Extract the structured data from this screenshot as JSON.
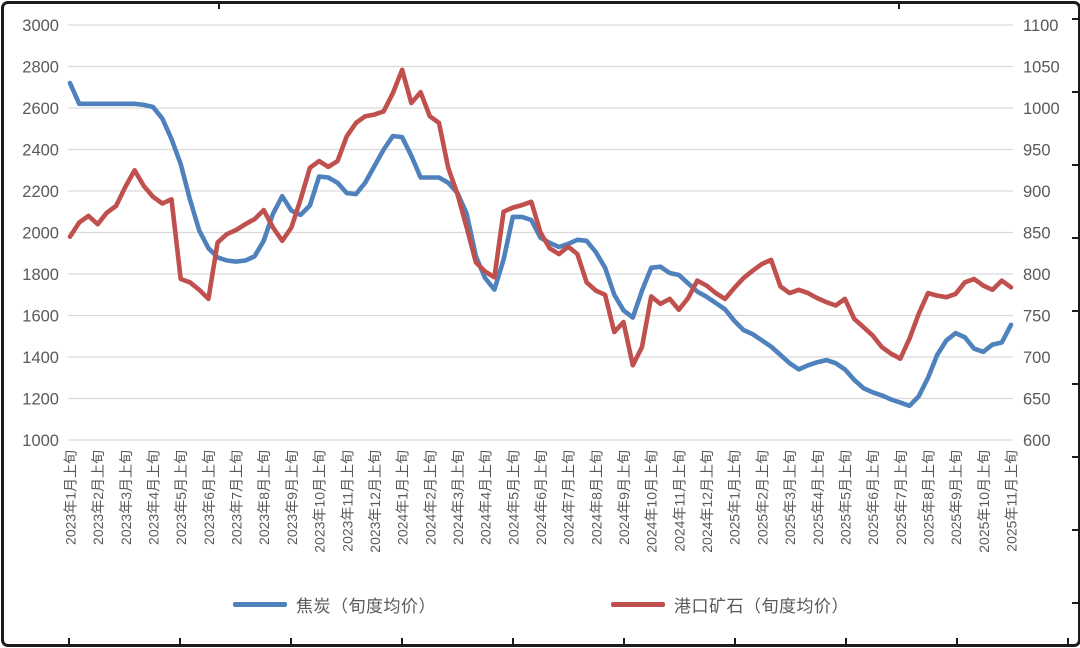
{
  "chart_data": {
    "type": "line",
    "title": "",
    "grid": "horizontal",
    "legend_position": "bottom",
    "x_tick_labels": [
      "2023年1月上旬",
      "2023年2月上旬",
      "2023年3月上旬",
      "2023年4月上旬",
      "2023年5月上旬",
      "2023年6月上旬",
      "2023年7月上旬",
      "2023年8月上旬",
      "2023年9月上旬",
      "2023年10月上旬",
      "2023年11月上旬",
      "2023年12月上旬",
      "2024年1月上旬",
      "2024年2月上旬",
      "2024年3月上旬",
      "2024年4月上旬",
      "2024年5月上旬",
      "2024年6月上旬",
      "2024年7月上旬",
      "2024年8月上旬",
      "2024年9月上旬",
      "2024年10月上旬",
      "2024年11月上旬",
      "2024年12月上旬",
      "2025年1月上旬",
      "2025年2月上旬",
      "2025年3月上旬",
      "2025年4月上旬",
      "2025年5月上旬",
      "2025年6月上旬",
      "2025年7月上旬",
      "2025年8月上旬",
      "2025年9月上旬",
      "2025年10月上旬",
      "2025年11月上旬"
    ],
    "points_per_tick": 3,
    "left_axis": {
      "min": 1000,
      "max": 3000,
      "step": 200,
      "ticks": [
        3000,
        2800,
        2600,
        2400,
        2200,
        2000,
        1800,
        1600,
        1400,
        1200,
        1000
      ]
    },
    "right_axis": {
      "min": 600,
      "max": 1100,
      "step": 50,
      "ticks": [
        1100,
        1050,
        1000,
        950,
        900,
        850,
        800,
        750,
        700,
        650,
        600
      ]
    },
    "series": [
      {
        "name": "焦炭（旬度均价）",
        "axis": "left",
        "color": "#4F81BD",
        "values": [
          2720,
          2620,
          2620,
          2620,
          2620,
          2620,
          2620,
          2620,
          2615,
          2605,
          2550,
          2450,
          2330,
          2160,
          2010,
          1925,
          1880,
          1865,
          1860,
          1865,
          1885,
          1960,
          2090,
          2175,
          2105,
          2085,
          2130,
          2270,
          2265,
          2240,
          2190,
          2185,
          2240,
          2320,
          2400,
          2465,
          2460,
          2370,
          2265,
          2265,
          2265,
          2240,
          2190,
          2090,
          1885,
          1780,
          1725,
          1870,
          2075,
          2075,
          2060,
          1975,
          1950,
          1930,
          1945,
          1965,
          1960,
          1905,
          1830,
          1700,
          1625,
          1590,
          1720,
          1830,
          1835,
          1805,
          1795,
          1755,
          1715,
          1690,
          1660,
          1630,
          1575,
          1530,
          1510,
          1480,
          1450,
          1410,
          1370,
          1340,
          1360,
          1375,
          1385,
          1370,
          1340,
          1290,
          1250,
          1230,
          1215,
          1195,
          1180,
          1165,
          1210,
          1300,
          1410,
          1480,
          1515,
          1495,
          1440,
          1425,
          1460,
          1470,
          1555
        ]
      },
      {
        "name": "港口矿石（旬度均价）",
        "axis": "right",
        "color": "#C0504D",
        "values": [
          845,
          862,
          870,
          860,
          874,
          882,
          905,
          925,
          906,
          893,
          885,
          890,
          794,
          790,
          781,
          770,
          838,
          848,
          853,
          860,
          866,
          877,
          856,
          840,
          856,
          890,
          928,
          936,
          929,
          936,
          966,
          982,
          990,
          992,
          996,
          1018,
          1046,
          1006,
          1019,
          990,
          982,
          928,
          896,
          856,
          814,
          803,
          796,
          875,
          880,
          883,
          887,
          850,
          831,
          824,
          833,
          824,
          790,
          780,
          775,
          730,
          742,
          690,
          712,
          773,
          764,
          770,
          757,
          771,
          792,
          786,
          777,
          770,
          783,
          795,
          804,
          812,
          817,
          785,
          777,
          781,
          777,
          771,
          766,
          762,
          770,
          746,
          736,
          726,
          712,
          704,
          698,
          722,
          752,
          777,
          774,
          772,
          776,
          790,
          794,
          786,
          781,
          792,
          784
        ]
      }
    ]
  },
  "legend": {
    "item1": "焦炭（旬度均价）",
    "item2": "港口矿石（旬度均价）"
  },
  "colors": {
    "coke_line": "#4F81BD",
    "ore_line": "#C0504D",
    "gridline": "#d9d9d9",
    "axis_text": "#595959",
    "frame": "#1b1b1b"
  }
}
